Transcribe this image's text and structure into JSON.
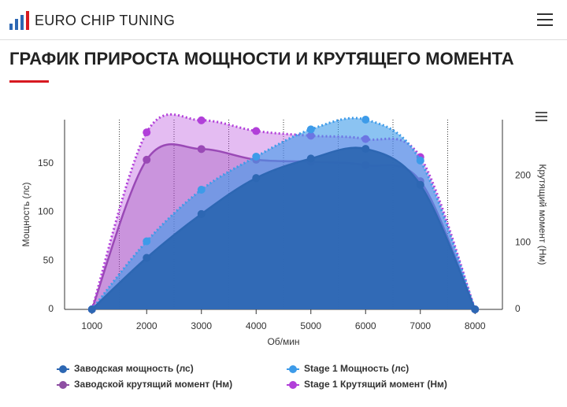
{
  "header": {
    "brand": "EURO CHIP TUNING"
  },
  "page_title": "ГРАФИК ПРИРОСТА МОЩНОСТИ И КРУТЯЩЕГО МОМЕНТА",
  "chart_data": {
    "type": "area",
    "x": [
      1000,
      2000,
      3000,
      4000,
      5000,
      6000,
      7000,
      8000
    ],
    "xlim": [
      500,
      8500
    ],
    "xticks": [
      1000,
      2000,
      3000,
      4000,
      5000,
      6000,
      7000,
      8000
    ],
    "x_label": "Об/мин",
    "y_label": "Мощность (лс)",
    "y2_label": "Крутящий момент (Нм)",
    "ylim": [
      0,
      195
    ],
    "yticks": [
      0,
      50,
      100,
      150
    ],
    "y2lim": [
      0,
      284
    ],
    "y2ticks": [
      0,
      100,
      200
    ],
    "series": [
      {
        "name": "Заводской крутящий момент (Нм)",
        "color": "#8e4fa3",
        "axis": "y2",
        "dashed": false,
        "values": [
          0,
          224,
          240,
          224,
          221,
          216,
          192,
          0
        ]
      },
      {
        "name": "Stage 1 Крутящий момент (Нм)",
        "color": "#b13fd9",
        "axis": "y2",
        "dashed": true,
        "values": [
          0,
          265,
          283,
          267,
          260,
          255,
          228,
          0
        ]
      },
      {
        "name": "Stage 1 Мощность (лс)",
        "color": "#3d9be9",
        "axis": "y",
        "dashed": true,
        "values": [
          0,
          70,
          123,
          157,
          185,
          195,
          153,
          0
        ]
      },
      {
        "name": "Заводская мощность (лс)",
        "color": "#2d67b3",
        "axis": "y",
        "dashed": false,
        "values": [
          0,
          53,
          98,
          135,
          155,
          165,
          128,
          0
        ]
      }
    ]
  }
}
